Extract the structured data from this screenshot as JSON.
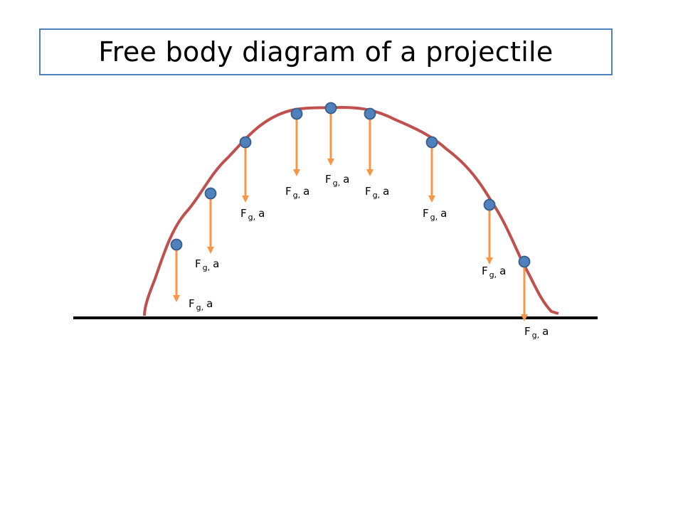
{
  "title": "Free body diagram of a projectile",
  "colors": {
    "trajectory": "#c0504d",
    "ball_fill": "#4f81bd",
    "ball_stroke": "#385d8a",
    "force_arrow": "#f79646",
    "ground": "#000000",
    "title_border": "#4f81bd"
  },
  "label": {
    "symbol": "F",
    "subscript": "g,",
    "suffix": "a"
  },
  "positions_count": 9
}
